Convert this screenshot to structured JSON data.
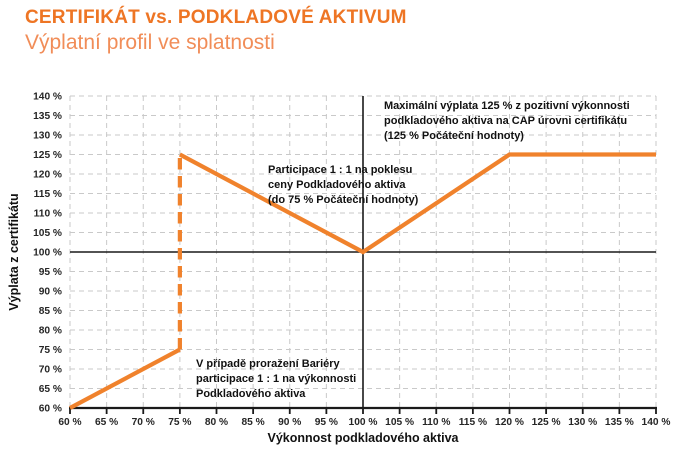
{
  "header": {
    "title": "CERTIFIKÁT vs. PODKLADOVÉ AKTIVUM",
    "subtitle": "Výplatní profil ve splatnosti"
  },
  "colors": {
    "title": "#EE7524",
    "subtitle": "#F18D58",
    "line": "#F0822C",
    "grid": "#C9C9C9",
    "axis": "#1A1A1A",
    "tick_text": "#262626",
    "annotation_text": "#111111",
    "background": "#FFFFFF"
  },
  "chart_data": {
    "type": "line",
    "title": "CERTIFIKÁT vs. PODKLADOVÉ AKTIVUM",
    "subtitle": "Výplatní profil ve splatnosti",
    "xlabel": "Výkonnost podkladového aktiva",
    "ylabel": "Výplata z certifikátu",
    "xlim": [
      60,
      140
    ],
    "ylim": [
      60,
      140
    ],
    "grid": "dashed",
    "legend": "none",
    "x_ticks": [
      60,
      65,
      70,
      75,
      80,
      85,
      90,
      95,
      100,
      105,
      110,
      115,
      120,
      125,
      130,
      135,
      140
    ],
    "x_tick_labels": [
      "60 %",
      "65 %",
      "70 %",
      "75 %",
      "80 %",
      "85 %",
      "90 %",
      "95 %",
      "100 %",
      "105 %",
      "110 %",
      "115 %",
      "120 %",
      "125 %",
      "130 %",
      "135 %",
      "140 %"
    ],
    "y_ticks": [
      60,
      65,
      70,
      75,
      80,
      85,
      90,
      95,
      100,
      105,
      110,
      115,
      120,
      125,
      130,
      135,
      140
    ],
    "y_tick_labels": [
      "60 %",
      "65 %",
      "70 %",
      "75 %",
      "80 %",
      "85 %",
      "90 %",
      "95 %",
      "100 %",
      "105 %",
      "110 %",
      "115 %",
      "120 %",
      "125 %",
      "130 %",
      "135 %",
      "140 %"
    ],
    "reference_lines": {
      "x": 100,
      "y": 100
    },
    "line_color": "#F0822C",
    "series": [
      {
        "name": "payoff-below-barrier",
        "style": "solid",
        "points": [
          [
            60,
            60
          ],
          [
            75,
            75
          ]
        ]
      },
      {
        "name": "barrier-jump",
        "style": "dashed",
        "points": [
          [
            75,
            75
          ],
          [
            75,
            125
          ]
        ]
      },
      {
        "name": "payoff-above-barrier",
        "style": "solid",
        "points": [
          [
            75,
            125
          ],
          [
            100,
            100
          ],
          [
            120,
            125
          ],
          [
            140,
            125
          ]
        ]
      }
    ],
    "annotations": [
      {
        "id": "cap",
        "text": "Maximální výplata 125 % z pozitivní výkonnosti\npodkladového aktiva na CAP úrovni certifikátu\n(125 % Počáteční hodnoty)"
      },
      {
        "id": "participation-down",
        "text": "Participace 1 : 1 na poklesu\nceny Podkladového aktiva\n(do 75 % Počáteční hodnoty)"
      },
      {
        "id": "barrier-breach",
        "text": "V případě proražení Bariéry\nparticipace 1 : 1 na výkonnosti\nPodkladového aktiva"
      }
    ]
  }
}
